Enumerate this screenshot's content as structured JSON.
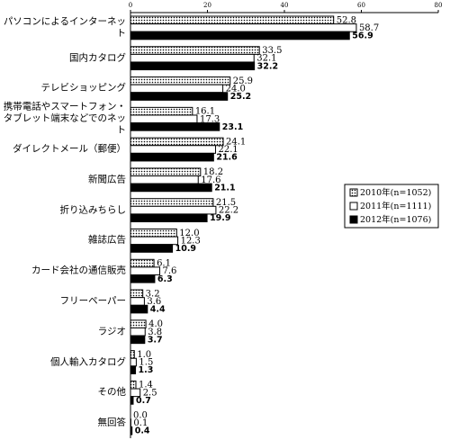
{
  "chart_data": {
    "type": "hbar",
    "categories": [
      "パソコンによるインターネット",
      "国内カタログ",
      "テレビショッピング",
      "携帯電話やスマートフォン・\nタブレット端末などでのネット",
      "ダイレクトメール（郵便）",
      "新聞広告",
      "折り込みちらし",
      "雑誌広告",
      "カード会社の通信販売",
      "フリーペーパー",
      "ラジオ",
      "個人輸入カタログ",
      "その他",
      "無回答"
    ],
    "series": [
      {
        "name": "2010年(n=1052)",
        "color": "#000000",
        "pattern": "dots",
        "values": [
          52.8,
          33.5,
          25.9,
          16.1,
          24.1,
          18.2,
          21.5,
          12.0,
          6.1,
          3.2,
          4.0,
          1.0,
          1.4,
          0.0
        ],
        "value_labels": [
          "52.8",
          "33.5",
          "25.9",
          "16.1",
          "24.1",
          "18.2",
          "21.5",
          "12.0",
          "6.1",
          "3.2",
          "4.0",
          "1.0",
          "1.4",
          "0.0"
        ]
      },
      {
        "name": "2011年(n=1111)",
        "color": "#ffffff",
        "values": [
          58.7,
          32.1,
          24.0,
          17.3,
          22.1,
          17.6,
          22.2,
          12.3,
          7.6,
          3.6,
          3.8,
          1.5,
          2.5,
          0.1
        ],
        "value_labels": [
          "58.7",
          "32.1",
          "24.0",
          "17.3",
          "22.1",
          "17.6",
          "22.2",
          "12.3",
          "7.6",
          "3.6",
          "3.8",
          "1.5",
          "2.5",
          "0.1"
        ]
      },
      {
        "name": "2012年(n=1076)",
        "color": "#000000",
        "bold_labels": true,
        "values": [
          56.9,
          32.2,
          25.2,
          23.1,
          21.6,
          21.1,
          19.9,
          10.9,
          6.3,
          4.4,
          3.7,
          1.3,
          0.7,
          0.4
        ],
        "value_labels": [
          "56.9",
          "32.2",
          "25.2",
          "23.1",
          "21.6",
          "21.1",
          "19.9",
          "10.9",
          "6.3",
          "4.4",
          "3.7",
          "1.3",
          "0.7",
          "0.4"
        ]
      }
    ],
    "xlim": [
      0,
      80
    ],
    "xticks": [
      0,
      20,
      40,
      60,
      80
    ],
    "legend": "right"
  }
}
